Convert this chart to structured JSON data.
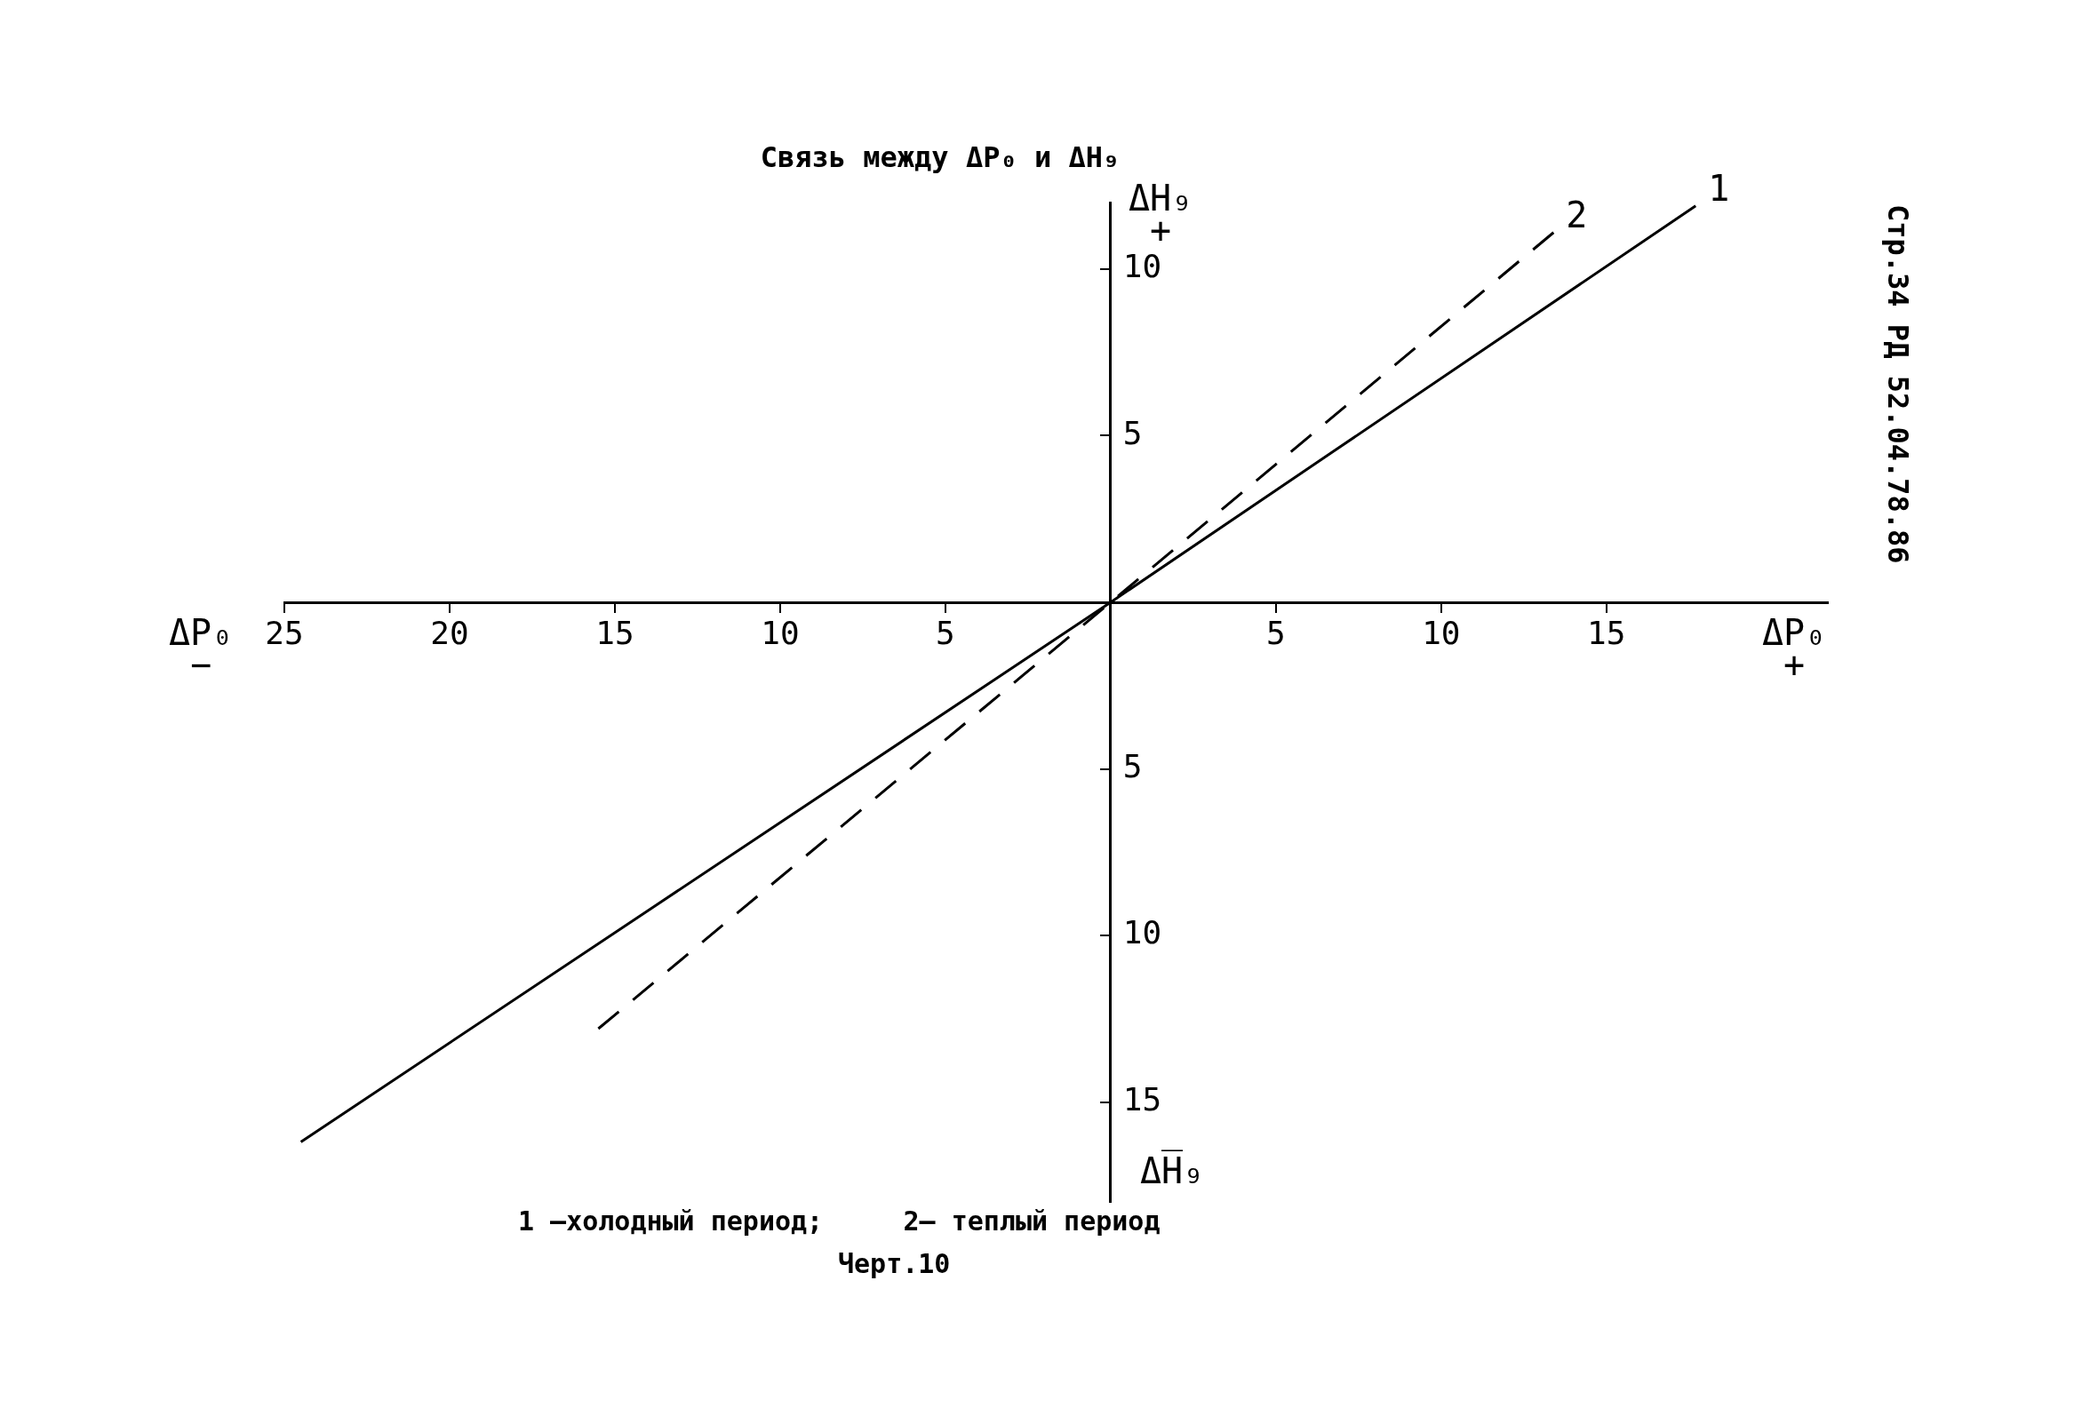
{
  "chart_data": {
    "type": "line",
    "title": "Связь между ΔP₀ и ΔH₉",
    "xlabel": "ΔP₀ +",
    "ylabel": "ΔH₉ +",
    "annotations": [
      "ΔP₀ −",
      "ΔH̅₉",
      "1 –холодный период;     2– теплый период",
      "Черт.10",
      "Стр.34 РД 52.04.78.86"
    ],
    "xlim": [
      -25,
      21.7
    ],
    "ylim": [
      -18,
      12
    ],
    "xticks": [
      {
        "value": -25,
        "label": "25"
      },
      {
        "value": -20,
        "label": "20"
      },
      {
        "value": -15,
        "label": "15"
      },
      {
        "value": -10,
        "label": "10"
      },
      {
        "value": -5,
        "label": "5"
      },
      5,
      10,
      15
    ],
    "yticks": [
      {
        "value": -15,
        "label": "15"
      },
      {
        "value": -10,
        "label": "10"
      },
      {
        "value": -5,
        "label": "5"
      },
      5,
      10
    ],
    "series": [
      {
        "name": "1",
        "color": "#000000",
        "line_style": "solid",
        "x": [
          -24.5,
          0,
          17.7
        ],
        "values": [
          -16.2,
          0,
          11.9
        ]
      },
      {
        "name": "2",
        "color": "#000000",
        "line_style": "dashed",
        "x": [
          -15.5,
          0,
          13.4
        ],
        "values": [
          -12.8,
          0,
          11.1
        ]
      }
    ]
  }
}
